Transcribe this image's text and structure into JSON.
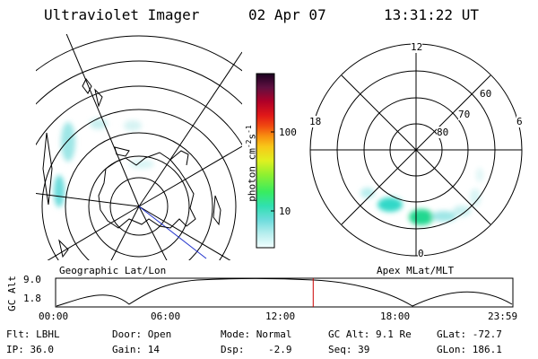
{
  "header": {
    "title": "Ultraviolet Imager",
    "date": "02 Apr 07",
    "time": "13:31:22 UT"
  },
  "left_panel": {
    "caption": "Geographic Lat/Lon"
  },
  "colorbar": {
    "label": "photon cm",
    "exp1": "-2",
    "unit2": "s",
    "exp2": "-1",
    "ticks": [
      "100",
      "10"
    ],
    "colors": [
      "#f2ffff",
      "#ccf5f5",
      "#a0eaea",
      "#6cdcdc",
      "#3ce0c0",
      "#20e890",
      "#50f050",
      "#a8f030",
      "#e8f020",
      "#f8c818",
      "#f89010",
      "#f05010",
      "#e81818",
      "#c80020",
      "#900030",
      "#501040",
      "#200020"
    ]
  },
  "right_panel": {
    "caption": "Apex MLat/MLT",
    "mlt_labels": [
      "12",
      "18",
      "6",
      "0"
    ],
    "lat_labels": [
      "60",
      "70",
      "80"
    ]
  },
  "altitude_strip": {
    "ylabel": "GC Alt",
    "yticks": [
      "9.0",
      "1.8"
    ],
    "xticks": [
      "00:00",
      "06:00",
      "12:00",
      "18:00",
      "23:59"
    ],
    "marker_time_hours": 13.52,
    "marker_color": "#cc0000"
  },
  "footer": {
    "row1": {
      "filter": "Flt: LBHL",
      "door": "Door: Open",
      "mode": "Mode: Normal",
      "gc_alt": "GC Alt: 9.1 Re",
      "glat": "GLat: -72.7"
    },
    "row2": {
      "ip": "IP: 36.0",
      "gain": "Gain: 14",
      "dsp": "Dsp:    -2.9",
      "seq": "Seq: 39",
      "glon": "GLon: 186.1"
    }
  }
}
